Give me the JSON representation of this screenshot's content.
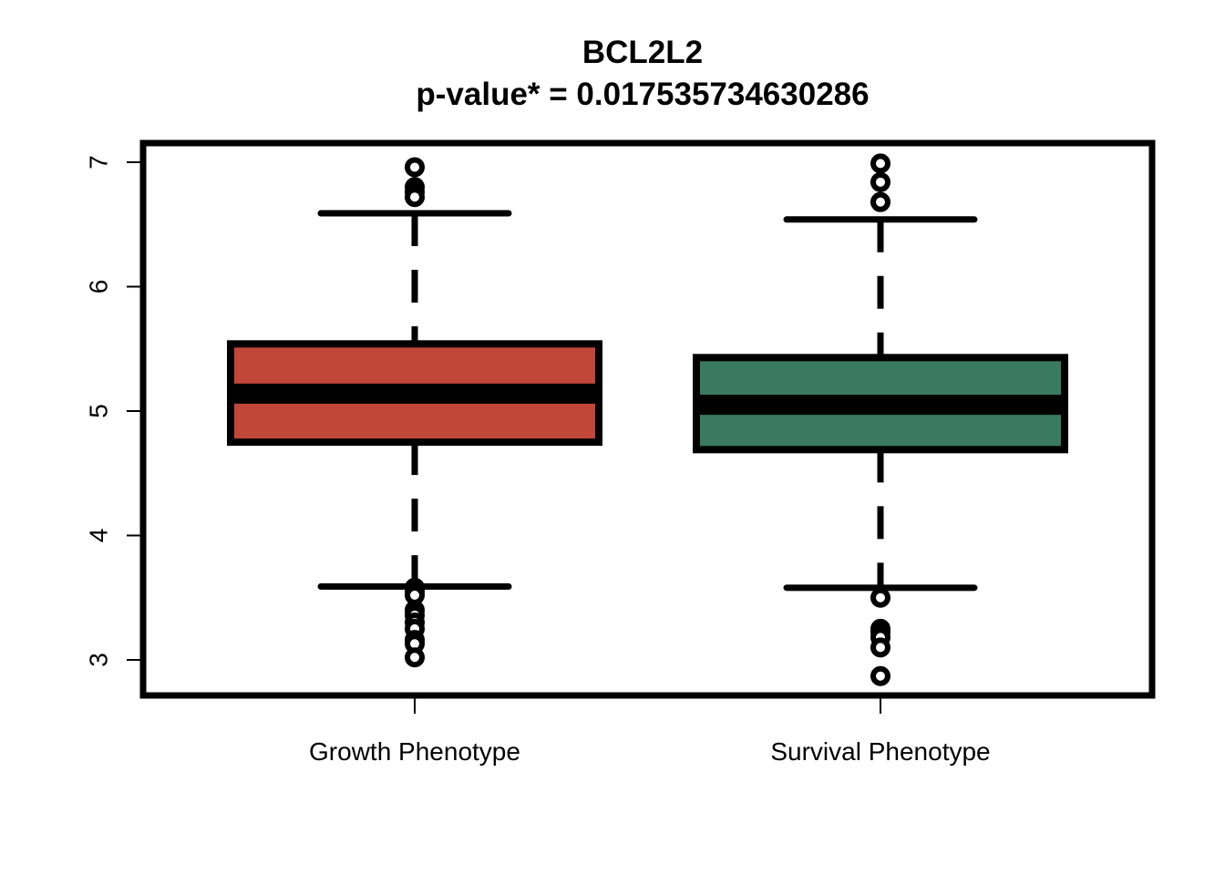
{
  "chart_data": {
    "type": "boxplot",
    "title": "BCL2L2",
    "subtitle": "p-value* = 0.017535734630286",
    "xlabel": "",
    "ylabel": "",
    "ylim": [
      2.85,
      7.15
    ],
    "yticks": [
      3,
      4,
      5,
      6,
      7
    ],
    "categories": [
      "Growth Phenotype",
      "Survival Phenotype"
    ],
    "grid": false,
    "legend": "none",
    "boxes": [
      {
        "category": "Growth Phenotype",
        "color": "#c1473a",
        "whisker_low": 3.59,
        "q1": 4.75,
        "median": 5.14,
        "q3": 5.54,
        "whisker_high": 6.59,
        "outliers": [
          6.96,
          6.8,
          6.76,
          6.72,
          3.58,
          3.55,
          3.52,
          3.4,
          3.36,
          3.3,
          3.25,
          3.16,
          3.13,
          3.02
        ]
      },
      {
        "category": "Survival Phenotype",
        "color": "#397a60",
        "whisker_low": 3.58,
        "q1": 4.69,
        "median": 5.05,
        "q3": 5.43,
        "whisker_high": 6.54,
        "outliers": [
          6.99,
          6.84,
          6.68,
          3.5,
          3.25,
          3.22,
          3.18,
          3.1,
          2.87
        ]
      }
    ]
  }
}
